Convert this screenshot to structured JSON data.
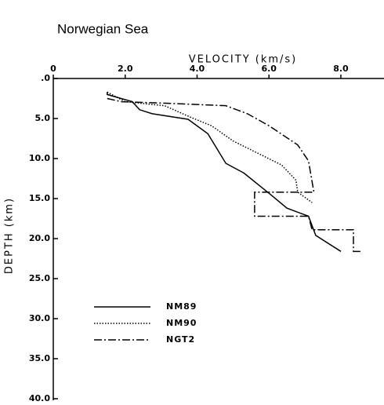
{
  "chart_data": {
    "type": "line",
    "title": "Norwegian Sea",
    "x_label": "VELOCITY (km/s)",
    "y_label": "DEPTH (km)",
    "xlim": [
      0,
      9.2
    ],
    "ylim": [
      0,
      40
    ],
    "y_inverted": true,
    "x_axis_position": "top",
    "xticks": [
      0,
      {
        "value": 2,
        "label": "2.0"
      },
      {
        "value": 4,
        "label": "4.0"
      },
      {
        "value": 6,
        "label": "6.0"
      },
      {
        "value": 8,
        "label": "8.0"
      }
    ],
    "yticks": [
      {
        "value": 0,
        "label": ".0"
      },
      {
        "value": 5,
        "label": "5.0"
      },
      {
        "value": 10,
        "label": "10.0"
      },
      {
        "value": 15,
        "label": "15.0"
      },
      {
        "value": 20,
        "label": "20.0"
      },
      {
        "value": 25,
        "label": "25.0"
      },
      {
        "value": 30,
        "label": "30.0"
      },
      {
        "value": 35,
        "label": "35.0"
      },
      {
        "value": 40,
        "label": "40.0"
      }
    ],
    "legend": "lower left",
    "series": [
      {
        "name": "NM89",
        "color": "#000000",
        "dash": "solid",
        "x": [
          1.5,
          1.5,
          2.2,
          2.4,
          2.75,
          3.75,
          4.3,
          4.8,
          5.3,
          6.1,
          6.5,
          7.1,
          7.3,
          8.0
        ],
        "values": [
          1.7,
          2.0,
          2.9,
          3.9,
          4.4,
          5.1,
          6.9,
          10.6,
          11.8,
          14.7,
          16.2,
          17.2,
          19.6,
          21.6
        ]
      },
      {
        "name": "NM90",
        "color": "#000000",
        "dash": "dotted",
        "x": [
          1.5,
          2.0,
          3.1,
          3.85,
          4.4,
          5.0,
          5.9,
          6.35,
          6.75,
          6.8,
          7.2
        ],
        "values": [
          1.7,
          2.9,
          3.4,
          4.9,
          5.9,
          7.8,
          9.8,
          10.8,
          12.7,
          14.2,
          15.5
        ]
      },
      {
        "name": "NGT2",
        "color": "#000000",
        "dash": "dashdot",
        "x": [
          1.5,
          1.9,
          3.2,
          4.8,
          5.4,
          6.0,
          6.8,
          7.1,
          7.25,
          5.6,
          5.6,
          7.1,
          7.2,
          8.35,
          8.35,
          8.6
        ],
        "values": [
          2.5,
          2.9,
          3.1,
          3.4,
          4.4,
          5.9,
          8.3,
          10.3,
          14.2,
          14.2,
          17.2,
          17.2,
          18.9,
          18.9,
          21.6,
          21.6
        ]
      }
    ]
  }
}
